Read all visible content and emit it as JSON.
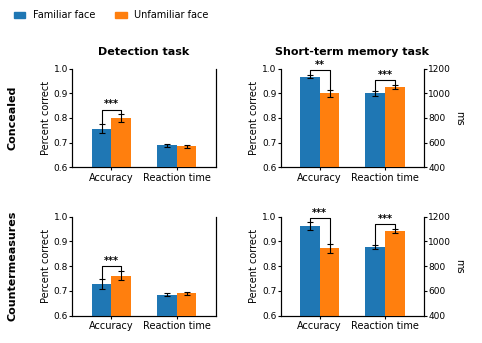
{
  "chart_data": [
    {
      "type": "bar",
      "title": "Detection task",
      "row_label": "Concealed",
      "legend": "upper left",
      "categories": [
        "Accuracy",
        "Reaction time"
      ],
      "ylabel": "Percent correct",
      "ylim": [
        0.6,
        1.0
      ],
      "yticks": [
        0.6,
        0.7,
        0.8,
        0.9,
        {
          "value": 1.0,
          "label": "1.0"
        }
      ],
      "y2lim": [
        400,
        1200
      ],
      "series": [
        {
          "name": "Familiar face",
          "values": [
            0.757,
            null
          ],
          "errors": [
            0.018,
            null
          ]
        },
        {
          "name": "Unfamiliar face",
          "values": [
            0.8,
            null
          ],
          "errors": [
            0.015,
            null
          ]
        },
        {
          "name": "Familiar face",
          "axis": "y2",
          "values": [
            null,
            580
          ],
          "errors": [
            null,
            12
          ]
        },
        {
          "name": "Unfamiliar face",
          "axis": "y2",
          "values": [
            null,
            570
          ],
          "errors": [
            null,
            10
          ]
        }
      ],
      "annotations": [
        {
          "text": "***",
          "category": "Accuracy",
          "axis": "y"
        }
      ]
    },
    {
      "type": "bar",
      "title": "Short-term memory task",
      "categories": [
        "Accuracy",
        "Reaction time"
      ],
      "ylabel": "Percent correct",
      "y2label": "ms",
      "ylim": [
        0.6,
        1.0
      ],
      "yticks": [
        0.6,
        0.7,
        0.8,
        0.9,
        {
          "value": 1.0,
          "label": "1.0"
        }
      ],
      "y2lim": [
        400,
        1200
      ],
      "y2ticks": [
        400,
        600,
        800,
        1000,
        1200
      ],
      "series": [
        {
          "name": "Familiar face",
          "values": [
            0.968,
            null
          ],
          "errors": [
            0.008,
            null
          ]
        },
        {
          "name": "Unfamiliar face",
          "values": [
            0.9,
            null
          ],
          "errors": [
            0.015,
            null
          ]
        },
        {
          "name": "Familiar face",
          "axis": "y2",
          "values": [
            null,
            1000
          ],
          "errors": [
            null,
            18
          ]
        },
        {
          "name": "Unfamiliar face",
          "axis": "y2",
          "values": [
            null,
            1050
          ],
          "errors": [
            null,
            18
          ]
        }
      ],
      "annotations": [
        {
          "text": "**",
          "category": "Accuracy",
          "axis": "y"
        },
        {
          "text": "***",
          "category": "Reaction time",
          "axis": "y2"
        }
      ]
    },
    {
      "type": "bar",
      "row_label": "Countermeasures",
      "categories": [
        "Accuracy",
        "Reaction time"
      ],
      "ylabel": "Percent correct",
      "ylim": [
        0.6,
        1.0
      ],
      "yticks": [
        0.6,
        0.7,
        0.8,
        0.9,
        {
          "value": 1.0,
          "label": "1.0"
        }
      ],
      "y2lim": [
        400,
        1200
      ],
      "series": [
        {
          "name": "Familiar face",
          "values": [
            0.728,
            null
          ],
          "errors": [
            0.02,
            null
          ]
        },
        {
          "name": "Unfamiliar face",
          "values": [
            0.762,
            null
          ],
          "errors": [
            0.02,
            null
          ]
        },
        {
          "name": "Familiar face",
          "axis": "y2",
          "values": [
            null,
            570
          ],
          "errors": [
            null,
            12
          ]
        },
        {
          "name": "Unfamiliar face",
          "axis": "y2",
          "values": [
            null,
            580
          ],
          "errors": [
            null,
            10
          ]
        }
      ],
      "annotations": [
        {
          "text": "***",
          "category": "Accuracy",
          "axis": "y"
        }
      ]
    },
    {
      "type": "bar",
      "categories": [
        "Accuracy",
        "Reaction time"
      ],
      "ylabel": "Percent correct",
      "y2label": "ms",
      "ylim": [
        0.6,
        1.0
      ],
      "yticks": [
        0.6,
        0.7,
        0.8,
        0.9,
        {
          "value": 1.0,
          "label": "1.0"
        }
      ],
      "y2lim": [
        400,
        1200
      ],
      "y2ticks": [
        400,
        600,
        800,
        1000,
        1200
      ],
      "series": [
        {
          "name": "Familiar face",
          "values": [
            0.962,
            null
          ],
          "errors": [
            0.015,
            null
          ]
        },
        {
          "name": "Unfamiliar face",
          "values": [
            0.873,
            null
          ],
          "errors": [
            0.018,
            null
          ]
        },
        {
          "name": "Familiar face",
          "axis": "y2",
          "values": [
            null,
            955
          ],
          "errors": [
            null,
            18
          ]
        },
        {
          "name": "Unfamiliar face",
          "axis": "y2",
          "values": [
            null,
            1085
          ],
          "errors": [
            null,
            18
          ]
        }
      ],
      "annotations": [
        {
          "text": "***",
          "category": "Accuracy",
          "axis": "y"
        },
        {
          "text": "***",
          "category": "Reaction time",
          "axis": "y2"
        }
      ]
    }
  ]
}
